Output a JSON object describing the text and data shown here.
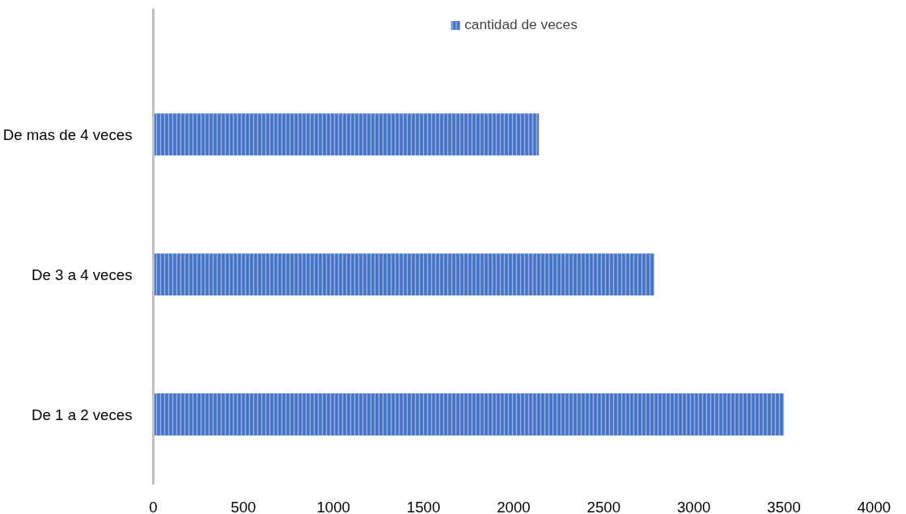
{
  "chart_data": {
    "type": "bar",
    "orientation": "horizontal",
    "categories": [
      "De mas de 4 veces",
      "De 3 a 4 veces",
      "De 1 a 2 veces"
    ],
    "series": [
      {
        "name": "cantidad de veces",
        "color": "#4472c4",
        "values": [
          2140,
          2780,
          3500
        ]
      }
    ],
    "xlim": [
      0,
      4000
    ],
    "xticks": [
      0,
      500,
      1000,
      1500,
      2000,
      2500,
      3000,
      3500,
      4000
    ],
    "grid": false,
    "legend": "top"
  }
}
